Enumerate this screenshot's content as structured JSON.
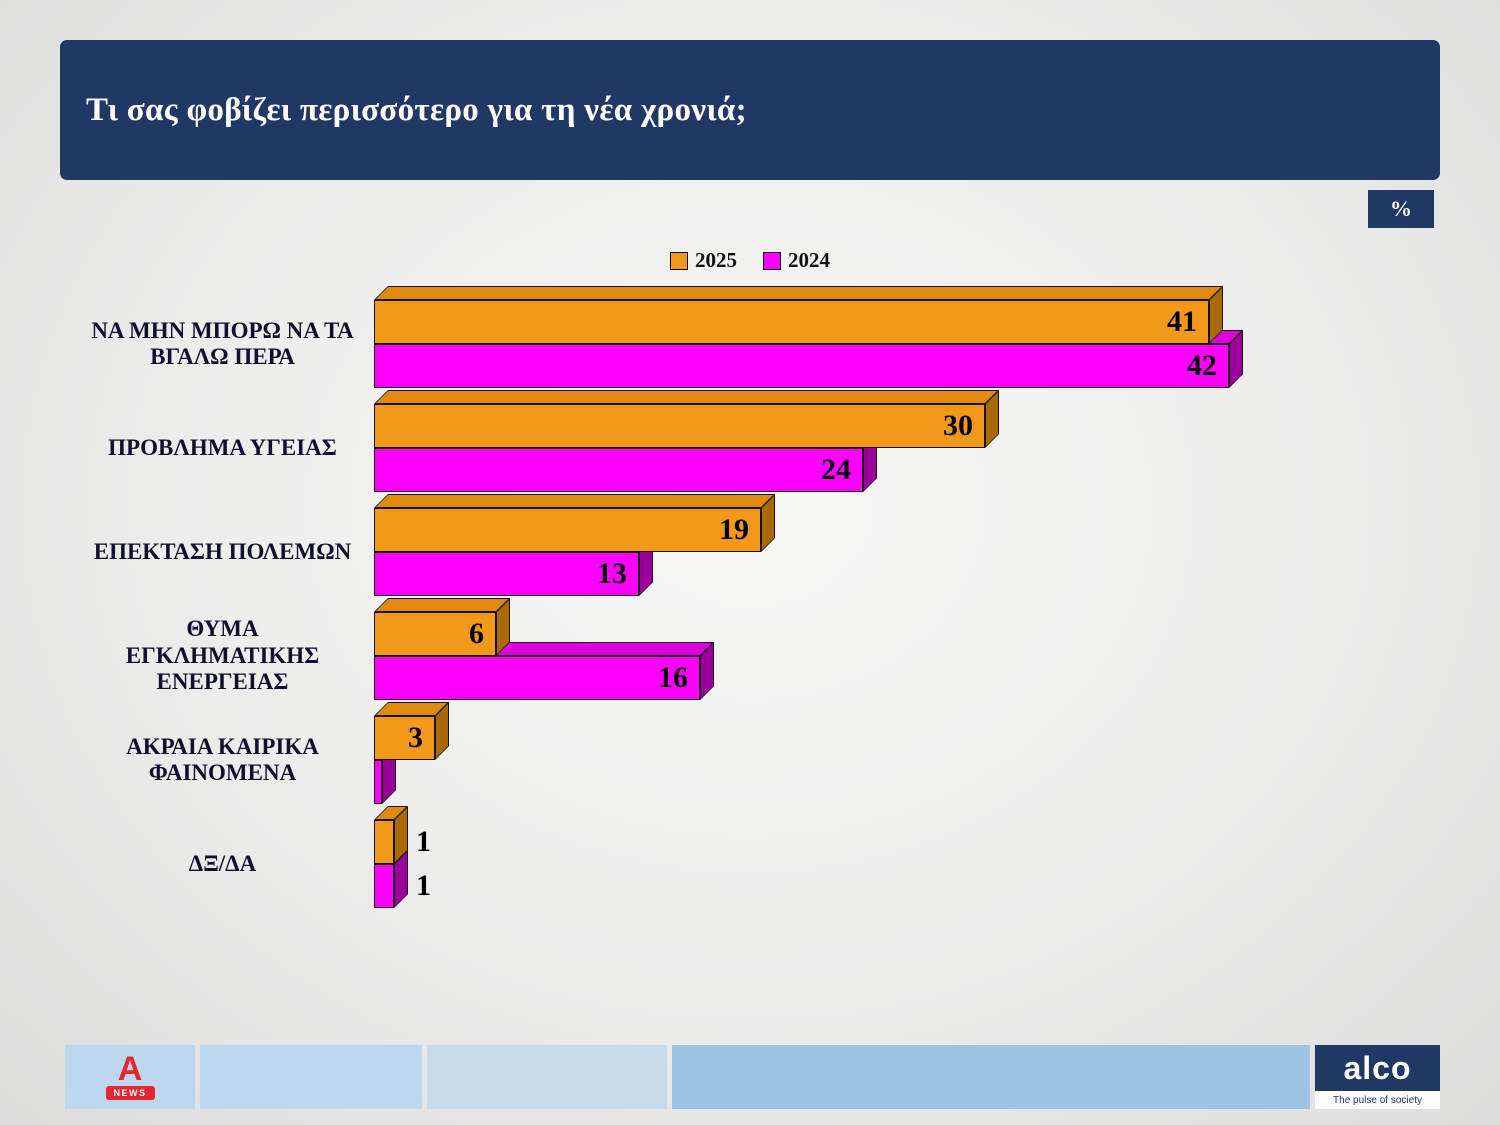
{
  "header": {
    "title": "Τι σας φοβίζει περισσότερο για τη νέα χρονιά;",
    "unit_badge": "%"
  },
  "chart_data": {
    "type": "bar",
    "orientation": "horizontal",
    "title": "Τι σας φοβίζει περισσότερο για τη νέα χρονιά;",
    "unit": "%",
    "legend_position": "top",
    "xmax": 42,
    "categories": [
      "ΝΑ ΜΗΝ ΜΠΟΡΩ ΝΑ ΤΑ ΒΓΑΛΩ ΠΕΡΑ",
      "ΠΡΟΒΛΗΜΑ ΥΓΕΙΑΣ",
      "ΕΠΕΚΤΑΣΗ ΠΟΛΕΜΩΝ",
      "ΘΥΜΑ ΕΓΚΛΗΜΑΤΙΚΗΣ ΕΝΕΡΓΕΙΑΣ",
      "ΑΚΡΑΙΑ ΚΑΙΡΙΚΑ ΦΑΙΝΟΜΕΝΑ",
      "ΔΞ/ΔΑ"
    ],
    "series": [
      {
        "name": "2025",
        "color": "#F2991C",
        "color_top": "#E18A10",
        "color_side": "#A96905",
        "values": [
          41,
          30,
          19,
          6,
          3,
          1
        ],
        "labels": [
          "41",
          "30",
          "19",
          "6",
          "3",
          "1"
        ]
      },
      {
        "name": "2024",
        "color": "#FF00FF",
        "color_top": "#DD00DD",
        "color_side": "#9A009A",
        "values": [
          42,
          24,
          13,
          16,
          0.4,
          1
        ],
        "labels": [
          "42",
          "24",
          "13",
          "16",
          "",
          "1"
        ]
      }
    ]
  },
  "footer": {
    "alpha_logo": {
      "letter": "A",
      "news": "NEWS"
    },
    "alco": {
      "name": "alco",
      "tagline": "The pulse of society"
    }
  },
  "colors": {
    "navy": "#1F3864",
    "bar-orange": "#F2991C",
    "bar-magenta": "#FF00FF",
    "footer-light": "#BDD7EE",
    "footer-mid": "#9DC3E6",
    "alpha-red": "#E2272E"
  }
}
